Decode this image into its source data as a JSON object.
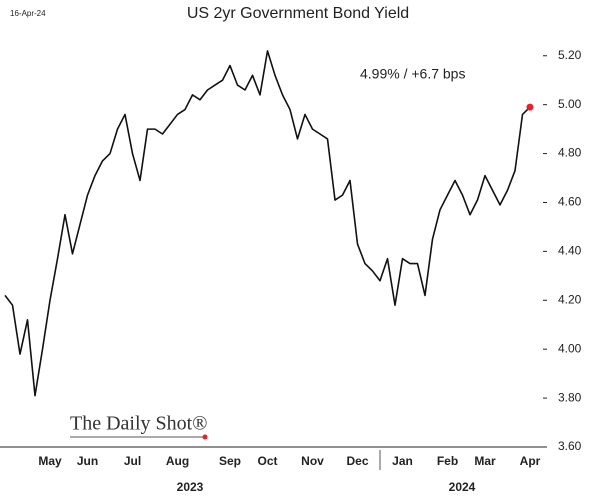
{
  "chart_data": {
    "type": "line",
    "title": "US 2yr Government Bond Yield",
    "date_label": "16-Apr-24",
    "annotation": "4.99%  /  +6.7 bps",
    "logo": "The Daily Shot®",
    "years": [
      "2023",
      "2024"
    ],
    "categories": [
      null,
      null,
      null,
      null,
      null,
      null,
      "May",
      null,
      null,
      null,
      null,
      "Jun",
      null,
      null,
      null,
      null,
      null,
      "Jul",
      null,
      null,
      null,
      null,
      null,
      "Aug",
      null,
      null,
      null,
      null,
      null,
      null,
      "Sep",
      null,
      null,
      null,
      null,
      "Oct",
      null,
      null,
      null,
      null,
      null,
      "Nov",
      null,
      null,
      null,
      null,
      null,
      "Dec",
      null,
      null,
      null,
      null,
      null,
      "Jan",
      null,
      null,
      null,
      null,
      null,
      "Feb",
      null,
      null,
      null,
      null,
      "Mar",
      null,
      null,
      null,
      null,
      null,
      "Apr"
    ],
    "series": [
      {
        "name": "US 2yr",
        "color": "#111111",
        "values": [
          4.22,
          4.18,
          3.98,
          4.12,
          3.81,
          4.0,
          4.2,
          4.37,
          4.55,
          4.39,
          4.51,
          4.63,
          4.71,
          4.77,
          4.8,
          4.9,
          4.96,
          4.8,
          4.69,
          4.9,
          4.9,
          4.88,
          4.92,
          4.96,
          4.98,
          5.04,
          5.02,
          5.06,
          5.08,
          5.1,
          5.16,
          5.08,
          5.06,
          5.12,
          5.04,
          5.22,
          5.12,
          5.04,
          4.98,
          4.86,
          4.96,
          4.9,
          4.88,
          4.86,
          4.61,
          4.63,
          4.69,
          4.43,
          4.35,
          4.32,
          4.28,
          4.37,
          4.18,
          4.37,
          4.35,
          4.35,
          4.22,
          4.45,
          4.57,
          4.63,
          4.69,
          4.63,
          4.55,
          4.61,
          4.71,
          4.65,
          4.59,
          4.65,
          4.73,
          4.96,
          4.99
        ]
      }
    ],
    "last_point_color": "#e8202a",
    "ylim": [
      3.6,
      5.28
    ],
    "yticks": [
      {
        "value": 3.6,
        "label": "3.60"
      },
      {
        "value": 3.8,
        "label": "3.80"
      },
      {
        "value": 4.0,
        "label": "4.00"
      },
      {
        "value": 4.2,
        "label": "4.20"
      },
      {
        "value": 4.4,
        "label": "4.40"
      },
      {
        "value": 4.6,
        "label": "4.60"
      },
      {
        "value": 4.8,
        "label": "4.80"
      },
      {
        "value": 5.0,
        "label": "5.00"
      },
      {
        "value": 5.2,
        "label": "5.20"
      }
    ],
    "grid": false
  }
}
